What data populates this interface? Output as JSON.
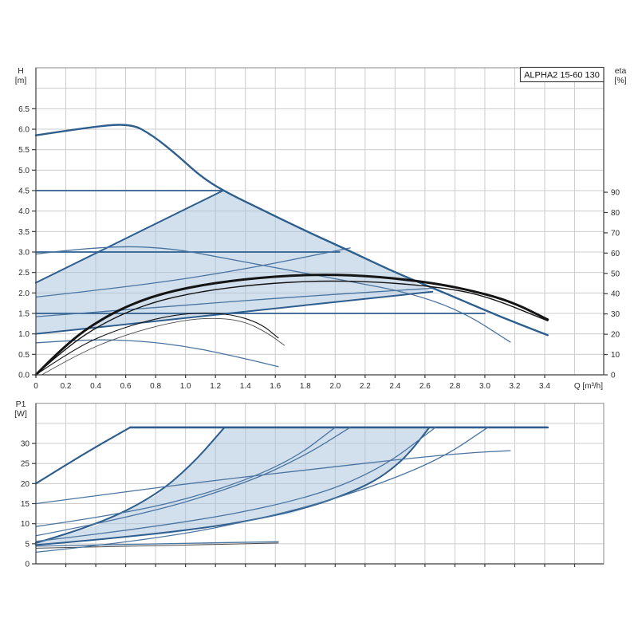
{
  "title_box_label": "ALPHA2 15-60 130",
  "axis_labels": {
    "top_left_line1": "H",
    "top_left_line2": "[m]",
    "top_right_line1": "eta",
    "top_right_line2": "[%]",
    "bottom_left_line1": "P1",
    "bottom_left_line2": "[W]",
    "x_axis": "Q [m³/h]"
  },
  "colors": {
    "blue": "#2e5e8e",
    "blue_thin": "#4a74a0",
    "fill": "rgba(165,194,219,0.5)",
    "black": "#141414",
    "gray_curve": "#4a4a4a",
    "grid": "#cccccc",
    "border": "#8c8c8c",
    "axis": "#3c3c3c",
    "text": "#2b2b2b",
    "title_border": "#444444"
  },
  "chart_data": [
    {
      "type": "line",
      "id": "head-chart",
      "xlabel": "Q [m³/h]",
      "ylabel_left": "H [m]",
      "ylabel_right": "eta [%]",
      "xlim": [
        0,
        3.795
      ],
      "ylim_left": [
        0,
        7.5
      ],
      "ylim_right_eta": [
        0,
        151
      ],
      "grid": true,
      "x_ticks": [
        [
          "0",
          "0"
        ],
        [
          "0.2",
          "0.2"
        ],
        [
          "0.4",
          "0.4"
        ],
        [
          "0.6",
          "0.6"
        ],
        [
          "0.8",
          "0.8"
        ],
        [
          "1.0",
          "1.0"
        ],
        [
          "1.2",
          "1.2"
        ],
        [
          "1.4",
          "1.4"
        ],
        [
          "1.6",
          "1.6"
        ],
        [
          "1.8",
          "1.8"
        ],
        [
          "2.0",
          "2.0"
        ],
        [
          "2.2",
          "2.2"
        ],
        [
          "2.4",
          "2.4"
        ],
        [
          "2.6",
          "2.6"
        ],
        [
          "2.8",
          "2.8"
        ],
        [
          "3.0",
          "3.0"
        ],
        [
          "3.2",
          "3.2"
        ],
        [
          "3.4",
          "3.4"
        ]
      ],
      "y_ticks_left": [
        [
          "0.0",
          "0.0"
        ],
        [
          "0.5",
          "0.5"
        ],
        [
          "1.0",
          "1.0"
        ],
        [
          "1.5",
          "1.5"
        ],
        [
          "2.0",
          "2.0"
        ],
        [
          "2.5",
          "2.5"
        ],
        [
          "3.0",
          "3.0"
        ],
        [
          "3.5",
          "3.5"
        ],
        [
          "4.0",
          "4.0"
        ],
        [
          "4.5",
          "4.5"
        ],
        [
          "5.0",
          "5.0"
        ],
        [
          "5.5",
          "5.5"
        ],
        [
          "6.0",
          "6.0"
        ],
        [
          "6.5",
          "6.5"
        ]
      ],
      "y_ticks_right": [
        [
          "0",
          "0"
        ],
        [
          "10",
          "10"
        ],
        [
          "20",
          "20"
        ],
        [
          "30",
          "30"
        ],
        [
          "40",
          "40"
        ],
        [
          "50",
          "50"
        ],
        [
          "60",
          "60"
        ],
        [
          "70",
          "70"
        ],
        [
          "80",
          "80"
        ],
        [
          "90",
          "90"
        ]
      ],
      "fill_region": {
        "name": "autoadapt-operating-range",
        "points": [
          [
            0,
            2.25
          ],
          [
            1.25,
            4.5
          ],
          [
            1.5,
            4.05
          ],
          [
            1.8,
            3.52
          ],
          [
            2.1,
            3.02
          ],
          [
            2.4,
            2.5
          ],
          [
            2.65,
            2.03
          ],
          [
            1.8,
            1.7
          ],
          [
            0.9,
            1.35
          ],
          [
            0,
            1.0
          ]
        ]
      },
      "series": [
        {
          "name": "shade-top-boundary-line",
          "color": "blue",
          "w": 2,
          "straight": true,
          "points": [
            [
              0,
              2.25
            ],
            [
              1.25,
              4.5
            ]
          ]
        },
        {
          "name": "pp1-curve-shade-bottom",
          "color": "blue",
          "w": 2,
          "points": [
            [
              0,
              1.0
            ],
            [
              0.9,
              1.35
            ],
            [
              1.8,
              1.7
            ],
            [
              2.65,
              2.03
            ]
          ]
        },
        {
          "name": "cp3-constant-pressure-line",
          "color": "blue",
          "w": 1.8,
          "straight": true,
          "points": [
            [
              0,
              4.5
            ],
            [
              1.25,
              4.5
            ]
          ]
        },
        {
          "name": "cp2-constant-pressure-line",
          "color": "blue",
          "w": 1.8,
          "straight": true,
          "points": [
            [
              0,
              3.0
            ],
            [
              2.03,
              3.0
            ]
          ]
        },
        {
          "name": "cp1-constant-pressure-line",
          "color": "blue",
          "w": 1.8,
          "straight": true,
          "points": [
            [
              0,
              1.5
            ],
            [
              3.0,
              1.5
            ]
          ]
        },
        {
          "name": "pp3-proportional-pressure-line",
          "color": "blue_thin",
          "w": 1.3,
          "points": [
            [
              0,
              1.9
            ],
            [
              0.7,
              2.18
            ],
            [
              1.4,
              2.58
            ],
            [
              2.1,
              3.1
            ]
          ]
        },
        {
          "name": "pp2-proportional-pressure-line",
          "color": "blue_thin",
          "w": 1.3,
          "points": [
            [
              0,
              1.42
            ],
            [
              0.9,
              1.68
            ],
            [
              1.8,
              1.92
            ],
            [
              2.67,
              2.12
            ]
          ]
        },
        {
          "name": "speed-ii-curve",
          "color": "blue_thin",
          "w": 1.3,
          "points": [
            [
              0,
              2.95
            ],
            [
              0.45,
              3.15
            ],
            [
              0.9,
              3.1
            ],
            [
              1.3,
              2.82
            ],
            [
              1.7,
              2.55
            ],
            [
              2.1,
              2.28
            ],
            [
              2.5,
              2.0
            ],
            [
              2.85,
              1.55
            ],
            [
              3.17,
              0.8
            ]
          ]
        },
        {
          "name": "speed-i-curve",
          "color": "blue_thin",
          "w": 1.3,
          "points": [
            [
              0,
              0.78
            ],
            [
              0.35,
              0.87
            ],
            [
              0.7,
              0.83
            ],
            [
              1.0,
              0.7
            ],
            [
              1.3,
              0.48
            ],
            [
              1.62,
              0.2
            ]
          ]
        },
        {
          "name": "max-speed-iii-curve",
          "color": "blue",
          "w": 2.4,
          "points": [
            [
              0,
              5.85
            ],
            [
              0.32,
              6.03
            ],
            [
              0.63,
              6.15
            ],
            [
              0.78,
              5.85
            ],
            [
              0.95,
              5.35
            ],
            [
              1.1,
              4.85
            ],
            [
              1.25,
              4.5
            ],
            [
              1.5,
              4.05
            ],
            [
              1.8,
              3.52
            ],
            [
              2.1,
              3.02
            ],
            [
              2.4,
              2.5
            ],
            [
              2.7,
              2.05
            ],
            [
              3.0,
              1.58
            ],
            [
              3.2,
              1.28
            ],
            [
              3.42,
              0.97
            ]
          ]
        },
        {
          "name": "eta-curve-speed-iii",
          "color": "black",
          "w": 3,
          "points": [
            [
              0,
              0
            ],
            [
              0.2,
              0.75
            ],
            [
              0.45,
              1.4
            ],
            [
              0.75,
              1.9
            ],
            [
              1.1,
              2.2
            ],
            [
              1.5,
              2.38
            ],
            [
              1.9,
              2.46
            ],
            [
              2.3,
              2.4
            ],
            [
              2.7,
              2.22
            ],
            [
              3.0,
              1.98
            ],
            [
              3.2,
              1.75
            ],
            [
              3.42,
              1.35
            ]
          ]
        },
        {
          "name": "eta-curve-speed-ii",
          "color": "black",
          "w": 1.4,
          "points": [
            [
              0,
              0
            ],
            [
              0.2,
              0.66
            ],
            [
              0.45,
              1.27
            ],
            [
              0.75,
              1.75
            ],
            [
              1.1,
              2.04
            ],
            [
              1.5,
              2.22
            ],
            [
              1.9,
              2.3
            ],
            [
              2.3,
              2.27
            ],
            [
              2.7,
              2.14
            ],
            [
              3.0,
              1.94
            ],
            [
              3.42,
              1.32
            ]
          ]
        },
        {
          "name": "eta-curve-speed-i",
          "color": "black",
          "w": 1.1,
          "points": [
            [
              0,
              0
            ],
            [
              0.25,
              0.62
            ],
            [
              0.5,
              1.05
            ],
            [
              0.8,
              1.38
            ],
            [
              1.05,
              1.52
            ],
            [
              1.3,
              1.49
            ],
            [
              1.5,
              1.26
            ],
            [
              1.62,
              0.9
            ]
          ]
        },
        {
          "name": "eta-curve-speed-i-thin",
          "color": "gray_curve",
          "w": 0.9,
          "points": [
            [
              0.04,
              0
            ],
            [
              0.3,
              0.55
            ],
            [
              0.6,
              0.98
            ],
            [
              0.9,
              1.28
            ],
            [
              1.15,
              1.4
            ],
            [
              1.38,
              1.33
            ],
            [
              1.55,
              1.02
            ],
            [
              1.66,
              0.72
            ]
          ]
        }
      ]
    },
    {
      "type": "line",
      "id": "power-chart",
      "xlabel": "",
      "ylabel_left": "P1 [W]",
      "xlim": [
        0,
        3.795
      ],
      "ylim_left": [
        0,
        40
      ],
      "grid": true,
      "y_ticks_left": [
        [
          "0",
          "0"
        ],
        [
          "5",
          "5"
        ],
        [
          "10",
          "10"
        ],
        [
          "15",
          "15"
        ],
        [
          "20",
          "20"
        ],
        [
          "25",
          "25"
        ],
        [
          "30",
          "30"
        ]
      ],
      "fill_region": {
        "name": "autoadapt-power-range",
        "points": [
          [
            0,
            5.2
          ],
          [
            0.4,
            9.5
          ],
          [
            0.8,
            17
          ],
          [
            1.05,
            25
          ],
          [
            1.26,
            34
          ],
          [
            2.63,
            34
          ],
          [
            2.45,
            25.5
          ],
          [
            2.2,
            19
          ],
          [
            1.7,
            12.5
          ],
          [
            0.9,
            7.5
          ],
          [
            0,
            4.7
          ]
        ]
      },
      "series": [
        {
          "name": "p1-cp3-curve-shade-top",
          "color": "blue",
          "w": 2,
          "points": [
            [
              0,
              5.2
            ],
            [
              0.4,
              9.5
            ],
            [
              0.8,
              17
            ],
            [
              1.05,
              25
            ],
            [
              1.26,
              34
            ]
          ]
        },
        {
          "name": "p1-pp1-curve-shade-bottom",
          "color": "blue",
          "w": 2,
          "points": [
            [
              0,
              4.7
            ],
            [
              0.9,
              7.5
            ],
            [
              1.7,
              12.5
            ],
            [
              2.2,
              19
            ],
            [
              2.45,
              25.5
            ],
            [
              2.63,
              34
            ]
          ]
        },
        {
          "name": "p1-max-speed-rise",
          "color": "blue",
          "w": 2.2,
          "points": [
            [
              0,
              20
            ],
            [
              0.3,
              27
            ],
            [
              0.63,
              34
            ]
          ]
        },
        {
          "name": "p1-max-speed-flat",
          "color": "blue",
          "w": 2.6,
          "straight": true,
          "points": [
            [
              0.63,
              34
            ],
            [
              3.42,
              34
            ]
          ]
        },
        {
          "name": "p1-speed-ii-curve",
          "color": "blue_thin",
          "w": 1.3,
          "points": [
            [
              0,
              15
            ],
            [
              0.6,
              18
            ],
            [
              1.2,
              20.8
            ],
            [
              1.9,
              23.8
            ],
            [
              2.5,
              26.3
            ],
            [
              2.9,
              27.7
            ],
            [
              3.17,
              28.2
            ]
          ]
        },
        {
          "name": "p1-speed-i-curve",
          "color": "blue_thin",
          "w": 1.3,
          "points": [
            [
              0,
              4.4
            ],
            [
              0.8,
              5.0
            ],
            [
              1.62,
              5.5
            ]
          ]
        },
        {
          "name": "p1-speed-i-curve-thin",
          "color": "gray_curve",
          "w": 1,
          "points": [
            [
              0,
              3.9
            ],
            [
              0.8,
              4.5
            ],
            [
              1.62,
              5.2
            ]
          ]
        },
        {
          "name": "p1-pp3-curve",
          "color": "blue_thin",
          "w": 1.3,
          "points": [
            [
              0,
              7.0
            ],
            [
              0.7,
              12
            ],
            [
              1.4,
              20
            ],
            [
              1.8,
              27
            ],
            [
              2.1,
              34
            ]
          ]
        },
        {
          "name": "p1-cp2-curve",
          "color": "blue_thin",
          "w": 1.3,
          "points": [
            [
              0,
              9.3
            ],
            [
              0.6,
              12.5
            ],
            [
              1.2,
              18
            ],
            [
              1.7,
              25.5
            ],
            [
              2.0,
              34
            ]
          ]
        },
        {
          "name": "p1-pp2-curve",
          "color": "blue_thin",
          "w": 1.3,
          "points": [
            [
              0,
              5.6
            ],
            [
              0.9,
              9.5
            ],
            [
              1.8,
              16
            ],
            [
              2.3,
              23.5
            ],
            [
              2.67,
              34
            ]
          ]
        },
        {
          "name": "p1-cp1-curve",
          "color": "blue_thin",
          "w": 1.3,
          "points": [
            [
              0,
              2.9
            ],
            [
              0.8,
              6.0
            ],
            [
              1.6,
              12
            ],
            [
              2.2,
              18.5
            ],
            [
              2.7,
              26
            ],
            [
              3.02,
              34
            ]
          ]
        }
      ]
    }
  ]
}
